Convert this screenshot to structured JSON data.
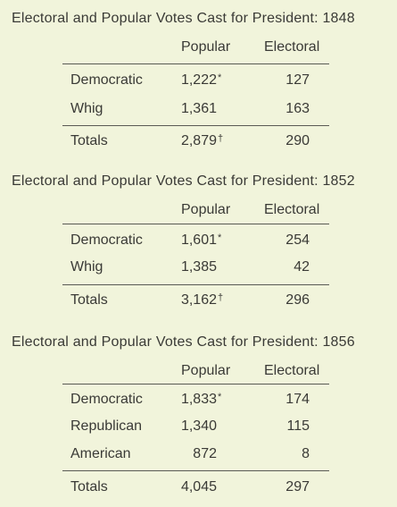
{
  "tables": [
    {
      "title": "Electoral and Popular Votes Cast for President: 1848",
      "columns": {
        "popular": "Popular",
        "electoral": "Electoral"
      },
      "rows": [
        {
          "party": "Democratic",
          "popular": "1,222",
          "popular_mark": "*",
          "electoral": "127"
        },
        {
          "party": "Whig",
          "popular": "1,361",
          "popular_mark": "",
          "electoral": "163"
        }
      ],
      "totals": {
        "label": "Totals",
        "popular": "2,879",
        "popular_mark": "†",
        "electoral": "290"
      }
    },
    {
      "title": "Electoral and Popular Votes Cast for President: 1852",
      "columns": {
        "popular": "Popular",
        "electoral": "Electoral"
      },
      "rows": [
        {
          "party": "Democratic",
          "popular": "1,601",
          "popular_mark": "*",
          "electoral": "254"
        },
        {
          "party": "Whig",
          "popular": "1,385",
          "popular_mark": "",
          "electoral": "42"
        }
      ],
      "totals": {
        "label": "Totals",
        "popular": "3,162",
        "popular_mark": "†",
        "electoral": "296"
      }
    },
    {
      "title": "Electoral and Popular Votes Cast for President: 1856",
      "columns": {
        "popular": "Popular",
        "electoral": "Electoral"
      },
      "rows": [
        {
          "party": "Democratic",
          "popular": "1,833",
          "popular_mark": "*",
          "electoral": "174"
        },
        {
          "party": "Republican",
          "popular": "1,340",
          "popular_mark": "",
          "electoral": "115"
        },
        {
          "party": "American",
          "popular": "872",
          "popular_mark": "",
          "electoral": "8"
        }
      ],
      "totals": {
        "label": "Totals",
        "popular": "4,045",
        "popular_mark": "",
        "electoral": "297"
      }
    }
  ]
}
